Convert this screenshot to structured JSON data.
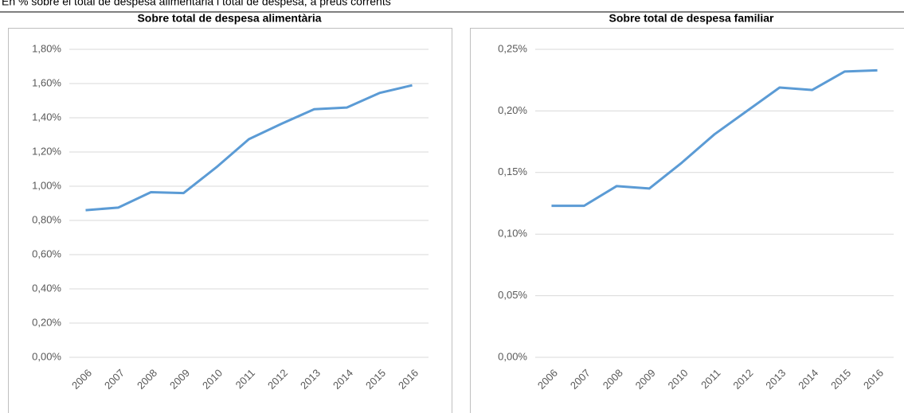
{
  "header": "En % sobre el total de despesa alimentària i total de despesa, a preus corrents",
  "chart_data": [
    {
      "type": "line",
      "title": "Sobre total de despesa alimentària",
      "categories": [
        "2006",
        "2007",
        "2008",
        "2009",
        "2010",
        "2011",
        "2012",
        "2013",
        "2014",
        "2015",
        "2016"
      ],
      "values": [
        0.86,
        0.875,
        0.965,
        0.96,
        1.11,
        1.275,
        1.365,
        1.45,
        1.46,
        1.545,
        1.59
      ],
      "color": "#5b9bd5",
      "ylim": [
        0,
        1.8
      ],
      "yticks": [
        {
          "value": 0,
          "label": "0,00%"
        },
        {
          "value": 0.2,
          "label": "0,20%"
        },
        {
          "value": 0.4,
          "label": "0,40%"
        },
        {
          "value": 0.6,
          "label": "0,60%"
        },
        {
          "value": 0.8,
          "label": "0,80%"
        },
        {
          "value": 1.0,
          "label": "1,00%"
        },
        {
          "value": 1.2,
          "label": "1,20%"
        },
        {
          "value": 1.4,
          "label": "1,40%"
        },
        {
          "value": 1.6,
          "label": "1,60%"
        },
        {
          "value": 1.8,
          "label": "1,80%"
        }
      ],
      "grid": true
    },
    {
      "type": "line",
      "title": "Sobre total de despesa familiar",
      "categories": [
        "2006",
        "2007",
        "2008",
        "2009",
        "2010",
        "2011",
        "2012",
        "2013",
        "2014",
        "2015",
        "2016"
      ],
      "values": [
        0.123,
        0.123,
        0.139,
        0.137,
        0.158,
        0.181,
        0.2,
        0.219,
        0.217,
        0.232,
        0.233
      ],
      "color": "#5b9bd5",
      "ylim": [
        0,
        0.25
      ],
      "yticks": [
        {
          "value": 0,
          "label": "0,00%"
        },
        {
          "value": 0.05,
          "label": "0,05%"
        },
        {
          "value": 0.1,
          "label": "0,10%"
        },
        {
          "value": 0.15,
          "label": "0,15%"
        },
        {
          "value": 0.2,
          "label": "0,20%"
        },
        {
          "value": 0.25,
          "label": "0,25%"
        }
      ],
      "grid": true
    }
  ]
}
